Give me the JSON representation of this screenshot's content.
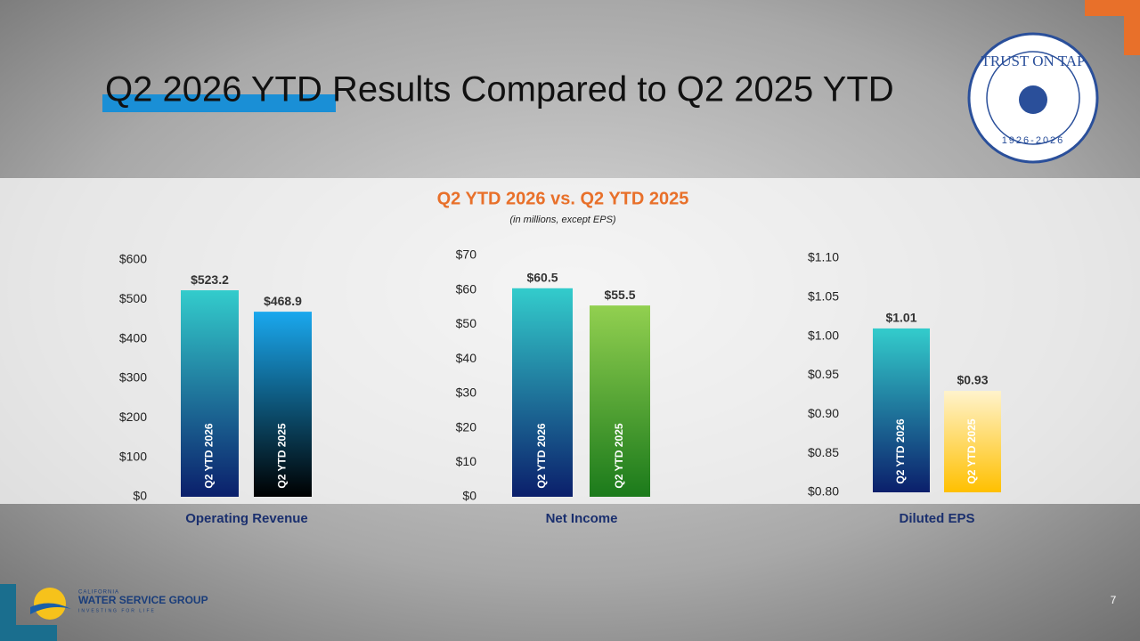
{
  "slide": {
    "title": "Q2 2026 YTD Results Compared to Q2 2025 YTD",
    "heading": "Q2 YTD 2026 vs. Q2 YTD 2025",
    "subheading": "(in millions, except EPS)",
    "page_number": "7",
    "logo": {
      "small": "CALIFORNIA",
      "name": "WATER SERVICE GROUP",
      "tagline": "INVESTING FOR LIFE"
    },
    "seal": {
      "text": "TRUST ON TAP",
      "years": "1926-2026"
    }
  },
  "chart_data": [
    {
      "type": "bar",
      "xlabel": "Operating Revenue",
      "categories": [
        "Q2 YTD 2026",
        "Q2 YTD 2025"
      ],
      "values": [
        523.2,
        468.9
      ],
      "value_labels": [
        "$523.2",
        "$468.9"
      ],
      "colors": [
        [
          "#33cccc",
          "#0b1f6b"
        ],
        [
          "#1aa8ee",
          "#000000"
        ]
      ],
      "ylim": [
        0,
        600
      ],
      "yticks": [
        {
          "value": 0,
          "label": "$0"
        },
        {
          "value": 100,
          "label": "$100"
        },
        {
          "value": 200,
          "label": "$200"
        },
        {
          "value": 300,
          "label": "$300"
        },
        {
          "value": 400,
          "label": "$400"
        },
        {
          "value": 500,
          "label": "$500"
        },
        {
          "value": 600,
          "label": "$600"
        }
      ]
    },
    {
      "type": "bar",
      "xlabel": "Net Income",
      "categories": [
        "Q2 YTD 2026",
        "Q2 YTD 2025"
      ],
      "values": [
        60.5,
        55.5
      ],
      "value_labels": [
        "$60.5",
        "$55.5"
      ],
      "colors": [
        [
          "#33cccc",
          "#0b1f6b"
        ],
        [
          "#92d050",
          "#1b7a1b"
        ]
      ],
      "ylim": [
        0,
        70
      ],
      "yticks": [
        {
          "value": 0,
          "label": "$0"
        },
        {
          "value": 10,
          "label": "$10"
        },
        {
          "value": 20,
          "label": "$20"
        },
        {
          "value": 30,
          "label": "$30"
        },
        {
          "value": 40,
          "label": "$40"
        },
        {
          "value": 50,
          "label": "$50"
        },
        {
          "value": 60,
          "label": "$60"
        },
        {
          "value": 70,
          "label": "$70"
        }
      ]
    },
    {
      "type": "bar",
      "xlabel": "Diluted EPS",
      "categories": [
        "Q2 YTD 2026",
        "Q2 YTD 2025"
      ],
      "values": [
        1.01,
        0.93
      ],
      "value_labels": [
        "$1.01",
        "$0.93"
      ],
      "colors": [
        [
          "#33cccc",
          "#0b1f6b"
        ],
        [
          "#fff3cc",
          "#ffc000"
        ]
      ],
      "ylim": [
        0.8,
        1.1
      ],
      "yticks": [
        {
          "value": 0.8,
          "label": "$0.80"
        },
        {
          "value": 0.85,
          "label": "$0.85"
        },
        {
          "value": 0.9,
          "label": "$0.90"
        },
        {
          "value": 0.95,
          "label": "$0.95"
        },
        {
          "value": 1.0,
          "label": "$1.00"
        },
        {
          "value": 1.05,
          "label": "$1.05"
        },
        {
          "value": 1.1,
          "label": "$1.10"
        }
      ]
    }
  ]
}
